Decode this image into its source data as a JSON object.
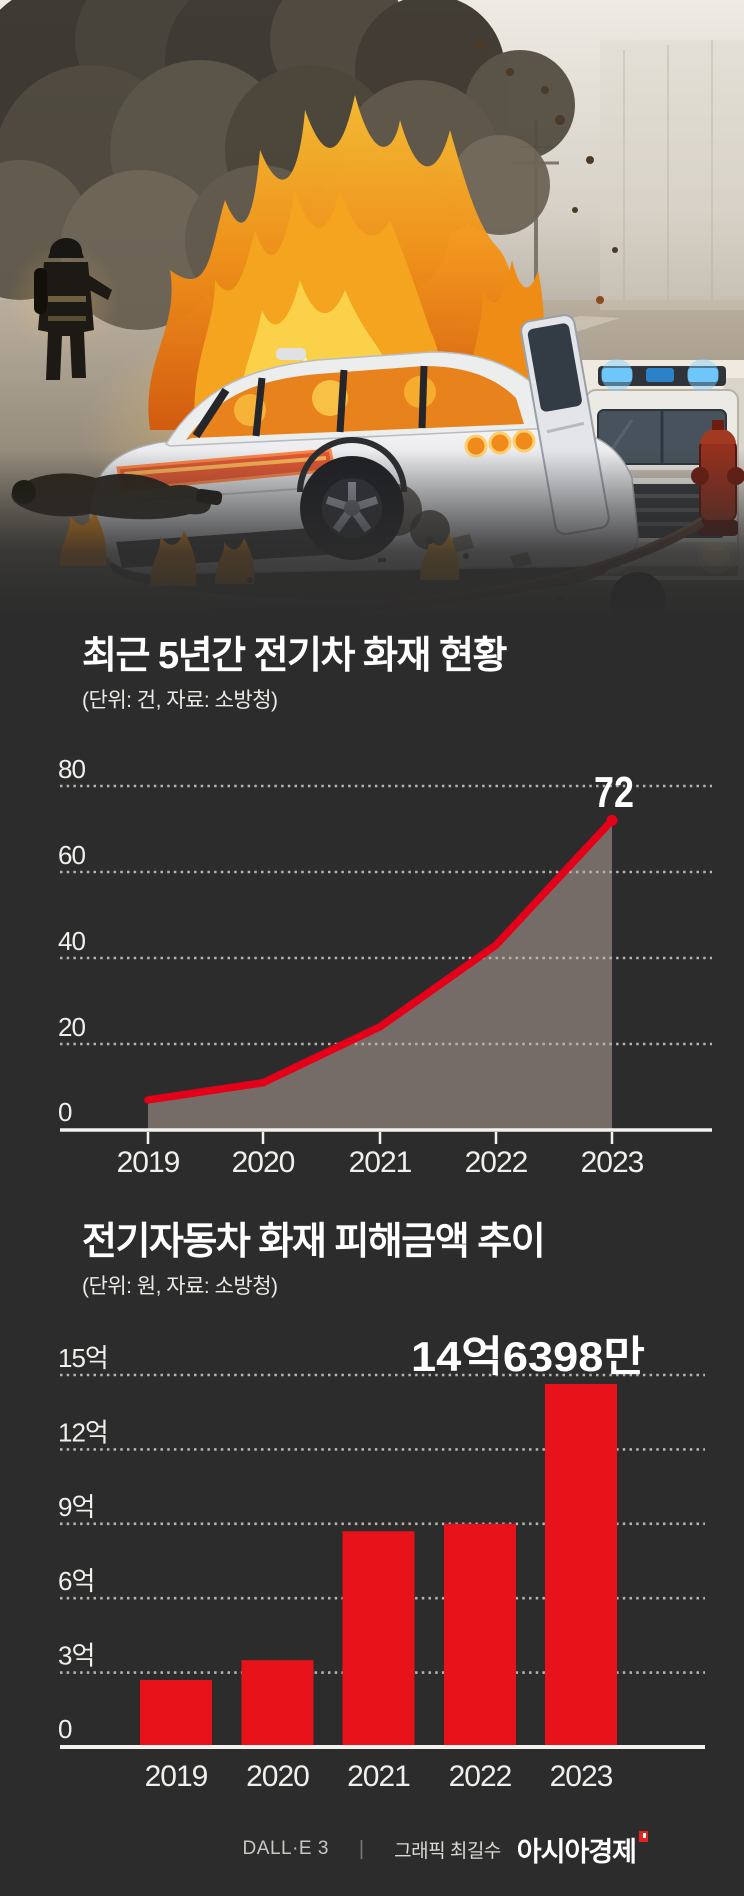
{
  "page": {
    "background": "#2c2c2c"
  },
  "colors": {
    "accent_red": "#e5231d",
    "chart_line_red": "#e50019",
    "bar_red": "#e8121a",
    "area_fill_gray": "#756c68",
    "gridline": "#b7b3af",
    "axis": "#f4f2ee",
    "text_light": "#f1efec"
  },
  "chart_data": [
    {
      "type": "area",
      "title": "최근 5년간 전기차 화재 현황",
      "unit_note": "(단위: 건, 자료: 소방청)",
      "source": "소방청",
      "unit": "건",
      "categories": [
        "2019",
        "2020",
        "2021",
        "2022",
        "2023"
      ],
      "values": [
        7,
        11,
        24,
        43,
        72
      ],
      "ylim": [
        0,
        80
      ],
      "yticks": [
        {
          "value": 0,
          "label": "0"
        },
        {
          "value": 20,
          "label": "20"
        },
        {
          "value": 40,
          "label": "40"
        },
        {
          "value": 60,
          "label": "60"
        },
        {
          "value": 80,
          "label": "80"
        }
      ],
      "grid": "dotted-horizontal",
      "legend": "none",
      "annotation": {
        "category": "2023",
        "label": "72"
      },
      "line_color": "#e50019",
      "area_color": "#756c68"
    },
    {
      "type": "bar",
      "title": "전기자동차 화재 피해금액 추이",
      "unit_note": "(단위: 원, 자료: 소방청)",
      "source": "소방청",
      "unit": "억원",
      "categories": [
        "2019",
        "2020",
        "2021",
        "2022",
        "2023"
      ],
      "values": [
        2.7,
        3.5,
        8.7,
        9,
        14.6398
      ],
      "ylim": [
        0,
        15.6
      ],
      "yticks": [
        {
          "value": 0,
          "label": "0"
        },
        {
          "value": 3,
          "label": "3억"
        },
        {
          "value": 6,
          "label": "6억"
        },
        {
          "value": 9,
          "label": "9억"
        },
        {
          "value": 12,
          "label": "12억"
        },
        {
          "value": 15,
          "label": "15억"
        }
      ],
      "grid": "dotted-horizontal",
      "legend": "none",
      "annotation": {
        "category": "2023",
        "label": "14억6398만"
      },
      "bar_color": "#e8121a"
    }
  ],
  "footer": {
    "tool_credit": "DALL·E 3",
    "separator": "|",
    "graphic_credit": "그래픽 최길수",
    "brand": "아시아경제"
  }
}
